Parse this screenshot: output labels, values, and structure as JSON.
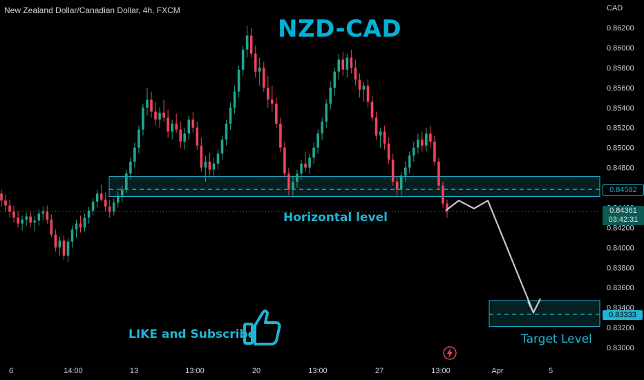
{
  "symbol_title": "New Zealand Dollar/Canadian Dollar, 4h, FXCM",
  "currency": "CAD",
  "big_title": "NZD-CAD",
  "annotations": {
    "horizontal_level": "Horizontal level",
    "target_level": "Target Level",
    "like_subscribe": "LIKE and Subscribe"
  },
  "icons": [
    "thumbs-up-icon",
    "lightning-icon"
  ],
  "price_tags": {
    "level": "0.84582",
    "current_price": "0.84361",
    "countdown": "03:42:31",
    "target": "0.83333"
  },
  "colors": {
    "up": "#22a68e",
    "down": "#f0435a",
    "zone": "#1fb5d4",
    "zone_fill": "#0b3a3c",
    "title": "#00b2d6",
    "arrow": "#c8c8c8"
  },
  "chart_data": {
    "type": "candlestick",
    "interval": "4h",
    "y_axis": {
      "min": 0.8294,
      "max": 0.8632,
      "ticks": [
        "0.86200",
        "0.86000",
        "0.85800",
        "0.85600",
        "0.85400",
        "0.85200",
        "0.85000",
        "0.84800",
        "0.84600",
        "0.84400",
        "0.84200",
        "0.84000",
        "0.83800",
        "0.83600",
        "0.83400",
        "0.83200",
        "0.83000"
      ]
    },
    "x_axis": {
      "labels": [
        "6",
        "14:00",
        "13",
        "13:00",
        "20",
        "13:00",
        "27",
        "13:00",
        "Apr",
        "5"
      ]
    },
    "support_zone": {
      "low": 0.8451,
      "high": 0.8471,
      "level": 0.84582
    },
    "target_zone": {
      "low": 0.8321,
      "high": 0.8347,
      "level": 0.83333
    },
    "current_price": 0.84361,
    "projection_path": [
      0.8437,
      0.8447,
      0.8439,
      0.8447,
      0.8335
    ],
    "candles": [
      [
        0.8454,
        0.8458,
        0.8441,
        0.8447
      ],
      [
        0.8447,
        0.8453,
        0.8436,
        0.8442
      ],
      [
        0.8442,
        0.8448,
        0.843,
        0.8436
      ],
      [
        0.8436,
        0.8442,
        0.8425,
        0.843
      ],
      [
        0.843,
        0.8436,
        0.842,
        0.8424
      ],
      [
        0.8424,
        0.8432,
        0.8417,
        0.8428
      ],
      [
        0.8428,
        0.8435,
        0.8422,
        0.8431
      ],
      [
        0.8431,
        0.8436,
        0.842,
        0.8425
      ],
      [
        0.8425,
        0.8432,
        0.8416,
        0.8427
      ],
      [
        0.8427,
        0.8438,
        0.8422,
        0.8434
      ],
      [
        0.8434,
        0.8441,
        0.8427,
        0.8436
      ],
      [
        0.8436,
        0.8442,
        0.8424,
        0.8428
      ],
      [
        0.8428,
        0.8433,
        0.841,
        0.8413
      ],
      [
        0.8413,
        0.8418,
        0.8396,
        0.84
      ],
      [
        0.84,
        0.8411,
        0.8392,
        0.8407
      ],
      [
        0.8407,
        0.8412,
        0.8388,
        0.8392
      ],
      [
        0.8392,
        0.841,
        0.8385,
        0.8406
      ],
      [
        0.8406,
        0.8422,
        0.84,
        0.8418
      ],
      [
        0.8418,
        0.8428,
        0.841,
        0.8424
      ],
      [
        0.8424,
        0.8432,
        0.8415,
        0.842
      ],
      [
        0.842,
        0.8434,
        0.8416,
        0.843
      ],
      [
        0.843,
        0.8441,
        0.8424,
        0.8437
      ],
      [
        0.8437,
        0.845,
        0.8432,
        0.8446
      ],
      [
        0.8446,
        0.8458,
        0.844,
        0.8454
      ],
      [
        0.8454,
        0.8463,
        0.8446,
        0.8448
      ],
      [
        0.8448,
        0.8455,
        0.8436,
        0.8441
      ],
      [
        0.8441,
        0.8448,
        0.843,
        0.8436
      ],
      [
        0.8436,
        0.8449,
        0.8432,
        0.8445
      ],
      [
        0.8445,
        0.8456,
        0.844,
        0.8452
      ],
      [
        0.8452,
        0.8462,
        0.8446,
        0.8458
      ],
      [
        0.8458,
        0.8478,
        0.8455,
        0.8474
      ],
      [
        0.8474,
        0.849,
        0.8468,
        0.8486
      ],
      [
        0.8486,
        0.8505,
        0.848,
        0.85
      ],
      [
        0.85,
        0.8522,
        0.8494,
        0.8518
      ],
      [
        0.8518,
        0.8544,
        0.8512,
        0.854
      ],
      [
        0.854,
        0.856,
        0.8532,
        0.8548
      ],
      [
        0.8548,
        0.8556,
        0.853,
        0.8536
      ],
      [
        0.8536,
        0.8546,
        0.8522,
        0.8528
      ],
      [
        0.8528,
        0.854,
        0.852,
        0.8535
      ],
      [
        0.8535,
        0.8548,
        0.8526,
        0.853
      ],
      [
        0.853,
        0.8538,
        0.851,
        0.8516
      ],
      [
        0.8516,
        0.8528,
        0.8508,
        0.8524
      ],
      [
        0.8524,
        0.8534,
        0.8515,
        0.8518
      ],
      [
        0.8518,
        0.8526,
        0.85,
        0.8506
      ],
      [
        0.8506,
        0.852,
        0.8498,
        0.8514
      ],
      [
        0.8514,
        0.8532,
        0.8508,
        0.8528
      ],
      [
        0.8528,
        0.8536,
        0.8515,
        0.852
      ],
      [
        0.852,
        0.8526,
        0.8498,
        0.8502
      ],
      [
        0.8502,
        0.851,
        0.8476,
        0.848
      ],
      [
        0.848,
        0.8492,
        0.8466,
        0.8486
      ],
      [
        0.8486,
        0.8495,
        0.8472,
        0.8478
      ],
      [
        0.8478,
        0.849,
        0.847,
        0.8484
      ],
      [
        0.8484,
        0.8498,
        0.8478,
        0.8494
      ],
      [
        0.8494,
        0.8512,
        0.8488,
        0.8508
      ],
      [
        0.8508,
        0.8528,
        0.8502,
        0.8524
      ],
      [
        0.8524,
        0.8545,
        0.8518,
        0.854
      ],
      [
        0.854,
        0.8562,
        0.8534,
        0.8556
      ],
      [
        0.8556,
        0.8582,
        0.855,
        0.8578
      ],
      [
        0.8578,
        0.8602,
        0.8572,
        0.8598
      ],
      [
        0.8598,
        0.8622,
        0.859,
        0.8612
      ],
      [
        0.8612,
        0.862,
        0.859,
        0.8594
      ],
      [
        0.8594,
        0.8602,
        0.857,
        0.8576
      ],
      [
        0.8576,
        0.859,
        0.8562,
        0.858
      ],
      [
        0.858,
        0.8586,
        0.8556,
        0.856
      ],
      [
        0.856,
        0.8572,
        0.854,
        0.8548
      ],
      [
        0.8548,
        0.8562,
        0.8536,
        0.8544
      ],
      [
        0.8544,
        0.855,
        0.852,
        0.8524
      ],
      [
        0.8524,
        0.853,
        0.8496,
        0.85
      ],
      [
        0.85,
        0.8506,
        0.847,
        0.8474
      ],
      [
        0.8474,
        0.848,
        0.8452,
        0.8458
      ],
      [
        0.8458,
        0.8472,
        0.845,
        0.8466
      ],
      [
        0.8466,
        0.8478,
        0.846,
        0.8474
      ],
      [
        0.8474,
        0.8488,
        0.8468,
        0.8484
      ],
      [
        0.8484,
        0.8496,
        0.8476,
        0.848
      ],
      [
        0.848,
        0.8494,
        0.8474,
        0.849
      ],
      [
        0.849,
        0.8505,
        0.8484,
        0.85
      ],
      [
        0.85,
        0.8518,
        0.8494,
        0.8514
      ],
      [
        0.8514,
        0.853,
        0.8508,
        0.8526
      ],
      [
        0.8526,
        0.8548,
        0.852,
        0.8544
      ],
      [
        0.8544,
        0.8566,
        0.8538,
        0.856
      ],
      [
        0.856,
        0.858,
        0.8552,
        0.8576
      ],
      [
        0.8576,
        0.8594,
        0.8568,
        0.8588
      ],
      [
        0.8588,
        0.8596,
        0.8572,
        0.8578
      ],
      [
        0.8578,
        0.8594,
        0.857,
        0.859
      ],
      [
        0.859,
        0.8598,
        0.8574,
        0.858
      ],
      [
        0.858,
        0.8588,
        0.8562,
        0.8568
      ],
      [
        0.8568,
        0.8574,
        0.855,
        0.8558
      ],
      [
        0.8558,
        0.8566,
        0.8546,
        0.8562
      ],
      [
        0.8562,
        0.8568,
        0.854,
        0.8546
      ],
      [
        0.8546,
        0.8552,
        0.8526,
        0.853
      ],
      [
        0.853,
        0.8536,
        0.8508,
        0.8512
      ],
      [
        0.8512,
        0.852,
        0.85,
        0.8516
      ],
      [
        0.8516,
        0.8522,
        0.8498,
        0.8504
      ],
      [
        0.8504,
        0.851,
        0.8484,
        0.8488
      ],
      [
        0.8488,
        0.8494,
        0.8462,
        0.8466
      ],
      [
        0.8466,
        0.8472,
        0.845,
        0.8458
      ],
      [
        0.8458,
        0.8476,
        0.8452,
        0.8472
      ],
      [
        0.8472,
        0.8486,
        0.8466,
        0.848
      ],
      [
        0.848,
        0.8496,
        0.8474,
        0.8492
      ],
      [
        0.8492,
        0.8506,
        0.8486,
        0.85
      ],
      [
        0.85,
        0.8514,
        0.8494,
        0.8508
      ],
      [
        0.8508,
        0.8516,
        0.8496,
        0.8502
      ],
      [
        0.8502,
        0.852,
        0.8496,
        0.8514
      ],
      [
        0.8514,
        0.8522,
        0.85,
        0.8506
      ],
      [
        0.8506,
        0.8512,
        0.8482,
        0.8486
      ],
      [
        0.8486,
        0.849,
        0.8458,
        0.8462
      ],
      [
        0.8462,
        0.8466,
        0.844,
        0.8444
      ],
      [
        0.8444,
        0.8448,
        0.843,
        0.8436
      ]
    ]
  }
}
